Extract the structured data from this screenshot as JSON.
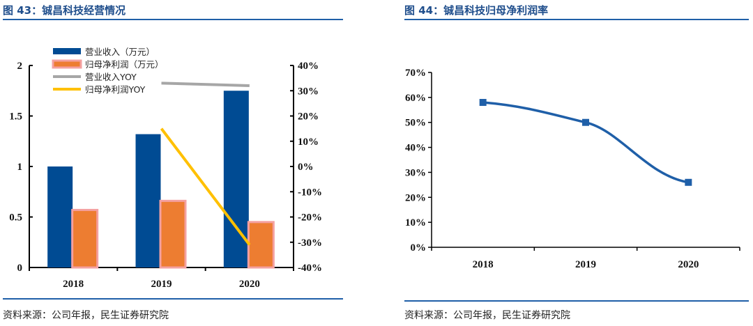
{
  "left": {
    "title": "图 43：铖昌科技经营情况",
    "source": "资料来源：公司年报，民生证券研究院"
  },
  "right": {
    "title": "图 44：铖昌科技归母净利润率",
    "source": "资料来源：公司年报，民生证券研究院"
  },
  "colors": {
    "title": "#1f4e8c",
    "revenue": "#004b93",
    "profit": "#ed7d31",
    "profit_border": "#f4a0a0",
    "revenue_yoy": "#a6a6a6",
    "profit_yoy": "#ffc000",
    "margin_line": "#1f5fa8"
  },
  "chart_data": [
    {
      "type": "bar",
      "categories": [
        "2018",
        "2019",
        "2020"
      ],
      "series": [
        {
          "name": "营业收入（万元）",
          "type": "bar",
          "axis": "left",
          "values": [
            1.0,
            1.32,
            1.75
          ]
        },
        {
          "name": "归母净利润（万元）",
          "type": "bar",
          "axis": "left",
          "values": [
            0.58,
            0.67,
            0.46
          ]
        },
        {
          "name": "营业收入YOY",
          "type": "line",
          "axis": "right",
          "values": [
            null,
            33,
            32
          ]
        },
        {
          "name": "归母净利润YOY",
          "type": "line",
          "axis": "right",
          "values": [
            null,
            15,
            -31
          ]
        }
      ],
      "ylim": [
        0,
        2
      ],
      "yticks": [
        "0",
        "0.5",
        "1",
        "1.5",
        "2"
      ],
      "y2lim": [
        -40,
        40
      ],
      "y2ticks": [
        "-40%",
        "-30%",
        "-20%",
        "-10%",
        "0%",
        "10%",
        "20%",
        "30%",
        "40%"
      ],
      "legend": "top-left",
      "grid": false
    },
    {
      "type": "line",
      "categories": [
        "2018",
        "2019",
        "2020"
      ],
      "values": [
        58,
        50,
        26
      ],
      "ylim": [
        0,
        70
      ],
      "yticks": [
        "0%",
        "10%",
        "20%",
        "30%",
        "40%",
        "50%",
        "60%",
        "70%"
      ],
      "grid": false
    }
  ]
}
